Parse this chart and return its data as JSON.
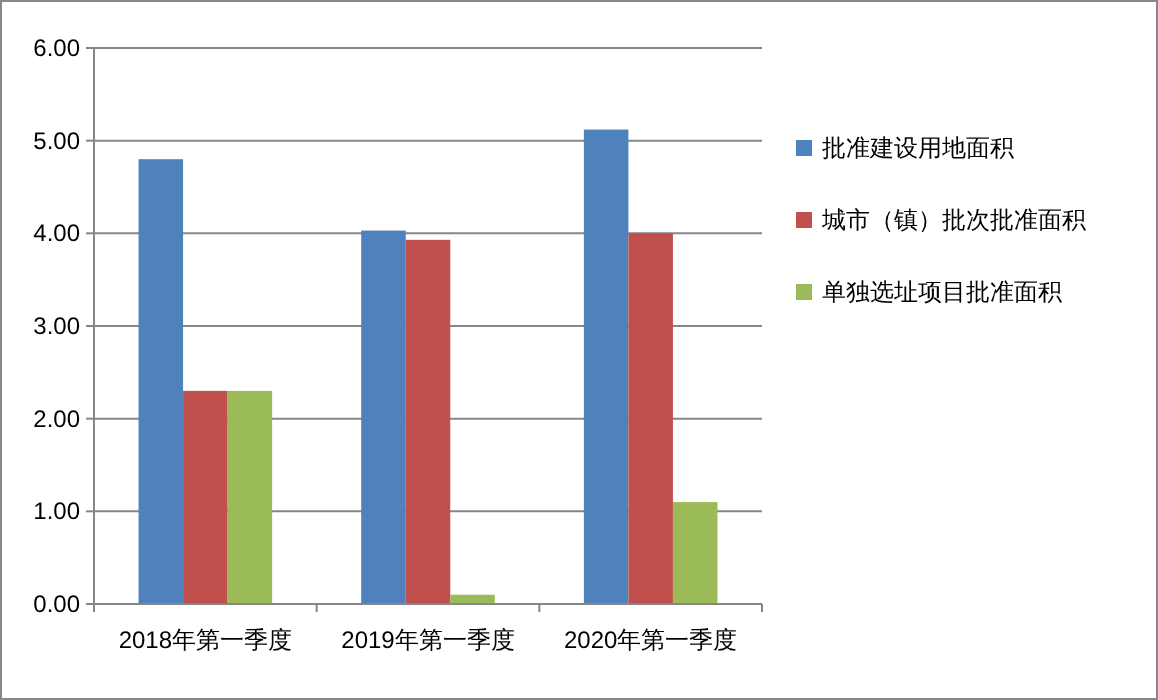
{
  "chart_data": {
    "type": "bar",
    "categories": [
      "2018年第一季度",
      "2019年第一季度",
      "2020年第一季度"
    ],
    "series": [
      {
        "name": "批准建设用地面积",
        "color": "#4f81bd",
        "values": [
          4.8,
          4.03,
          5.12
        ]
      },
      {
        "name": "城市（镇）批次批准面积",
        "color": "#c0504d",
        "values": [
          2.3,
          3.93,
          4.0
        ]
      },
      {
        "name": "单独选址项目批准面积",
        "color": "#9bbb59",
        "values": [
          2.3,
          0.1,
          1.1
        ]
      }
    ],
    "ylim": [
      0,
      6
    ],
    "yticks": [
      {
        "value": 0,
        "label": "0.00"
      },
      {
        "value": 1,
        "label": "1.00"
      },
      {
        "value": 2,
        "label": "2.00"
      },
      {
        "value": 3,
        "label": "3.00"
      },
      {
        "value": 4,
        "label": "4.00"
      },
      {
        "value": 5,
        "label": "5.00"
      },
      {
        "value": 6,
        "label": "6.00"
      }
    ],
    "grid": "y",
    "legend": "right"
  }
}
